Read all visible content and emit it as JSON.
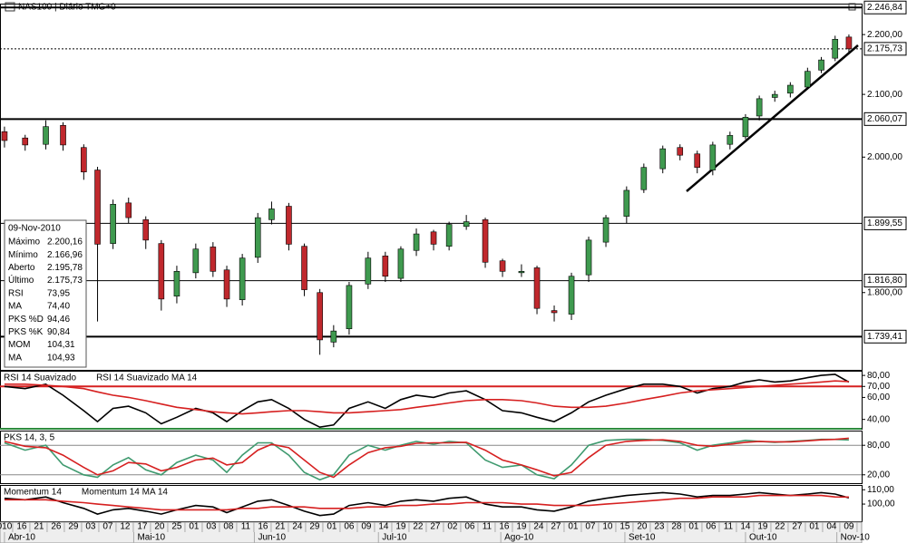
{
  "chart_data": [
    {
      "type": "candlestick",
      "title": "NAS100 | Diário TMG+0",
      "log_scale": true,
      "xlim": [
        -0.26,
        49.74
      ],
      "ylim": [
        1695,
        2252
      ],
      "up_color": "#3f9a4f",
      "down_color": "#c0282d",
      "x": [
        0,
        1.2,
        2.4,
        3.4,
        4.6,
        5.4,
        6.3,
        7.2,
        8.2,
        9.1,
        10,
        11.1,
        12.1,
        12.9,
        13.8,
        14.7,
        15.5,
        16.5,
        17.4,
        18.3,
        19.1,
        20,
        21.1,
        22.1,
        23,
        23.9,
        24.9,
        25.8,
        26.8,
        27.9,
        28.9,
        30,
        30.9,
        31.9,
        32.9,
        33.9,
        34.9,
        36.1,
        37.1,
        38.2,
        39.2,
        40.2,
        41.1,
        42.1,
        43,
        43.8,
        44.7,
        45.6,
        46.6,
        47.4,
        48.2,
        49
      ],
      "open": [
        2040,
        2030,
        2020,
        2050,
        2015,
        1980,
        1870,
        1930,
        1905,
        1870,
        1795,
        1828,
        1865,
        1832,
        1790,
        1850,
        1905,
        1925,
        1866,
        1800,
        1732,
        1750,
        1812,
        1852,
        1820,
        1860,
        1887,
        1866,
        1895,
        1905,
        1845,
        1828,
        1835,
        1775,
        1770,
        1825,
        1872,
        1910,
        1950,
        1982,
        2015,
        2005,
        1980,
        2020,
        2032,
        2065,
        2095,
        2102,
        2112,
        2140,
        2160,
        2195.78
      ],
      "high": [
        2048,
        2035,
        2058,
        2055,
        2020,
        1985,
        1935,
        1938,
        1910,
        1875,
        1838,
        1870,
        1872,
        1838,
        1855,
        1915,
        1932,
        1930,
        1870,
        1805,
        1755,
        1815,
        1858,
        1858,
        1866,
        1892,
        1890,
        1902,
        1912,
        1908,
        1848,
        1840,
        1838,
        1782,
        1828,
        1880,
        1912,
        1955,
        1990,
        2018,
        2020,
        2010,
        2024,
        2040,
        2068,
        2098,
        2106,
        2120,
        2144,
        2162,
        2198,
        2200.16
      ],
      "low": [
        2015,
        2010,
        2012,
        2010,
        1965,
        1760,
        1862,
        1900,
        1862,
        1775,
        1785,
        1820,
        1822,
        1780,
        1782,
        1842,
        1898,
        1860,
        1795,
        1715,
        1725,
        1742,
        1805,
        1815,
        1815,
        1852,
        1860,
        1860,
        1890,
        1835,
        1822,
        1822,
        1770,
        1760,
        1762,
        1815,
        1865,
        1900,
        1945,
        1975,
        1995,
        1975,
        1972,
        2012,
        2028,
        2058,
        2088,
        2095,
        2108,
        2135,
        2155,
        2166.96
      ],
      "close": [
        2026,
        2019,
        2048,
        2019,
        1977,
        1869,
        1928,
        1908,
        1875,
        1791,
        1830,
        1862,
        1830,
        1791,
        1849,
        1908,
        1921,
        1869,
        1804,
        1735,
        1747,
        1810,
        1849,
        1823,
        1862,
        1884,
        1869,
        1898,
        1902,
        1843,
        1830,
        1830,
        1778,
        1772,
        1823,
        1875,
        1908,
        1949,
        1984,
        2013,
        2003,
        1984,
        2019,
        2034,
        2063,
        2093,
        2100,
        2115,
        2138,
        2157,
        2192,
        2175.73
      ],
      "yticks": [
        {
          "value": 2200,
          "label": "2.200,00"
        },
        {
          "value": 2100,
          "label": "2.100,00"
        },
        {
          "value": 2000,
          "label": "2.000,00"
        },
        {
          "value": 1800,
          "label": "1.800,00"
        }
      ],
      "levels": [
        {
          "value": 2246.84,
          "label": "2.246,84",
          "style": "thick"
        },
        {
          "value": 2175.73,
          "label": "2.175,73",
          "style": "dotted"
        },
        {
          "value": 2060.07,
          "label": "2.060,07",
          "style": "thick"
        },
        {
          "value": 1899.55,
          "label": "1.899,55",
          "style": "thin"
        },
        {
          "value": 1816.8,
          "label": "1.816,80",
          "style": "thin"
        },
        {
          "value": 1739.41,
          "label": "1.739,41",
          "style": "thick"
        }
      ],
      "info": {
        "date": "09-Nov-2010",
        "rows": [
          {
            "label": "Máximo",
            "value": "2.200,16",
            "color": "#000000"
          },
          {
            "label": "Mínimo",
            "value": "2.166,96",
            "color": "#000000"
          },
          {
            "label": "Aberto",
            "value": "2.195,78",
            "color": "#000000"
          },
          {
            "label": "Último",
            "value": "2.175,73",
            "color": "#000000"
          },
          {
            "label": "RSI",
            "value": "73,95",
            "color": "#000000"
          },
          {
            "label": "MA",
            "value": "74,40",
            "color": "#c0282d"
          },
          {
            "label": "PKS %D",
            "value": "94,46",
            "color": "#c0282d"
          },
          {
            "label": "PKS %K",
            "value": "90,84",
            "color": "#3f9a4f"
          },
          {
            "label": "MOM",
            "value": "104,31",
            "color": "#000000"
          },
          {
            "label": "MA",
            "value": "104,93",
            "color": "#c0282d"
          }
        ]
      }
    },
    {
      "type": "line",
      "ylim": [
        31.5,
        83.4
      ],
      "yticks": [
        {
          "value": 80,
          "label": "80,00"
        },
        {
          "value": 70,
          "label": "70,00"
        },
        {
          "value": 60,
          "label": "60,00"
        },
        {
          "value": 40,
          "label": "40,00"
        }
      ],
      "hlines": [
        {
          "value": 70,
          "color": "#d62020"
        }
      ],
      "series": [
        {
          "name": "RSI 14 Suavizado",
          "color": "#000000",
          "values": [
            70,
            68,
            72,
            62,
            48,
            38,
            50,
            52,
            46,
            36,
            42,
            50,
            46,
            38,
            48,
            56,
            58,
            50,
            40,
            33,
            35,
            50,
            56,
            50,
            58,
            62,
            60,
            64,
            66,
            58,
            48,
            46,
            42,
            38,
            46,
            56,
            62,
            68,
            72,
            72,
            70,
            64,
            68,
            70,
            74,
            76,
            74,
            75,
            78,
            80,
            81,
            73.95
          ]
        },
        {
          "name": "RSI 14 Suavizado MA 14",
          "color": "#d62020",
          "values": [
            72,
            72,
            71,
            70,
            68,
            65,
            62,
            60,
            57,
            54,
            51,
            49,
            47,
            46,
            45,
            46,
            47,
            48,
            48,
            47,
            46,
            46,
            47,
            48,
            49,
            51,
            53,
            55,
            57,
            58,
            58,
            57,
            55,
            52,
            51,
            51,
            52,
            55,
            58,
            61,
            64,
            66,
            67,
            68,
            69,
            70,
            71,
            72,
            73,
            74,
            75,
            74.4
          ]
        }
      ]
    },
    {
      "type": "line",
      "title": "PKS 14, 3, 5",
      "ylim": [
        3,
        108
      ],
      "yticks": [
        {
          "value": 80,
          "label": "80,00"
        },
        {
          "value": 20,
          "label": "20,00"
        }
      ],
      "hlines": [
        {
          "value": 80,
          "color": "#888888"
        },
        {
          "value": 20,
          "color": "#888888"
        }
      ],
      "series": [
        {
          "color": "#3f9a6f",
          "values": [
            85,
            70,
            80,
            40,
            20,
            15,
            40,
            55,
            30,
            20,
            45,
            60,
            50,
            25,
            60,
            85,
            85,
            60,
            25,
            10,
            20,
            60,
            80,
            70,
            80,
            88,
            82,
            88,
            85,
            50,
            35,
            40,
            20,
            12,
            40,
            80,
            90,
            92,
            92,
            90,
            85,
            70,
            80,
            85,
            90,
            88,
            86,
            88,
            90,
            92,
            92,
            90.84
          ]
        },
        {
          "color": "#d62020",
          "values": [
            88,
            78,
            75,
            60,
            35,
            20,
            28,
            45,
            42,
            28,
            35,
            50,
            54,
            40,
            45,
            70,
            82,
            75,
            50,
            25,
            15,
            40,
            65,
            75,
            78,
            84,
            85,
            85,
            86,
            70,
            50,
            40,
            30,
            18,
            25,
            55,
            80,
            88,
            90,
            91,
            88,
            80,
            78,
            82,
            86,
            88,
            87,
            87,
            89,
            91,
            92,
            94.46
          ]
        }
      ]
    },
    {
      "type": "line",
      "ylim": [
        88,
        112.7
      ],
      "yticks": [
        {
          "value": 110,
          "label": "110,00"
        },
        {
          "value": 100,
          "label": "100,00"
        }
      ],
      "series": [
        {
          "name": "Momentum 14",
          "color": "#000000",
          "values": [
            104,
            103,
            105,
            101,
            97,
            93,
            96,
            97,
            95,
            93,
            96,
            99,
            98,
            94,
            98,
            102,
            103,
            99,
            95,
            92,
            93,
            99,
            101,
            99,
            102,
            103,
            102,
            104,
            105,
            100,
            98,
            98,
            96,
            95,
            98,
            102,
            104,
            106,
            107,
            108,
            107,
            105,
            106,
            106,
            107,
            108,
            107,
            106,
            107,
            108,
            107,
            104.31
          ]
        },
        {
          "name": "Momentum 14 MA 14",
          "color": "#d62020",
          "values": [
            103,
            103,
            103,
            102,
            101,
            100,
            99,
            98,
            97,
            96,
            96,
            96,
            96,
            96,
            97,
            97,
            98,
            98,
            98,
            97,
            97,
            97,
            98,
            98,
            99,
            99,
            100,
            100,
            101,
            101,
            101,
            100,
            100,
            99,
            99,
            99,
            100,
            101,
            102,
            103,
            104,
            104,
            105,
            105,
            105,
            106,
            106,
            106,
            106,
            106,
            105,
            104.93
          ]
        }
      ],
      "xticks": [
        {
          "value": 0,
          "label": "010"
        },
        {
          "value": 1,
          "label": "16"
        },
        {
          "value": 2,
          "label": "21"
        },
        {
          "value": 3,
          "label": "26"
        },
        {
          "value": 4,
          "label": "29"
        },
        {
          "value": 5,
          "label": "03"
        },
        {
          "value": 6,
          "label": "07"
        },
        {
          "value": 7,
          "label": "12"
        },
        {
          "value": 8,
          "label": "17"
        },
        {
          "value": 9,
          "label": "20"
        },
        {
          "value": 10,
          "label": "25"
        },
        {
          "value": 11,
          "label": "01"
        },
        {
          "value": 12,
          "label": "03"
        },
        {
          "value": 13,
          "label": "08"
        },
        {
          "value": 14,
          "label": "11"
        },
        {
          "value": 15,
          "label": "16"
        },
        {
          "value": 16,
          "label": "21"
        },
        {
          "value": 17,
          "label": "24"
        },
        {
          "value": 18,
          "label": "29"
        },
        {
          "value": 19,
          "label": "01"
        },
        {
          "value": 20,
          "label": "06"
        },
        {
          "value": 21,
          "label": "09"
        },
        {
          "value": 22,
          "label": "14"
        },
        {
          "value": 23,
          "label": "19"
        },
        {
          "value": 24,
          "label": "22"
        },
        {
          "value": 25,
          "label": "27"
        },
        {
          "value": 26,
          "label": "02"
        },
        {
          "value": 27,
          "label": "06"
        },
        {
          "value": 28,
          "label": "11"
        },
        {
          "value": 29,
          "label": "16"
        },
        {
          "value": 30,
          "label": "19"
        },
        {
          "value": 31,
          "label": "24"
        },
        {
          "value": 32,
          "label": "27"
        },
        {
          "value": 33,
          "label": "01"
        },
        {
          "value": 34,
          "label": "07"
        },
        {
          "value": 35,
          "label": "10"
        },
        {
          "value": 36,
          "label": "15"
        },
        {
          "value": 37,
          "label": "20"
        },
        {
          "value": 38,
          "label": "23"
        },
        {
          "value": 39,
          "label": "28"
        },
        {
          "value": 40,
          "label": "01"
        },
        {
          "value": 41,
          "label": "06"
        },
        {
          "value": 42,
          "label": "11"
        },
        {
          "value": 43,
          "label": "14"
        },
        {
          "value": 44,
          "label": "19"
        },
        {
          "value": 45,
          "label": "22"
        },
        {
          "value": 46,
          "label": "27"
        },
        {
          "value": 47,
          "label": "01"
        },
        {
          "value": 48,
          "label": "04"
        },
        {
          "value": 49,
          "label": "09"
        }
      ],
      "month_labels": [
        {
          "value": 0,
          "label": "Abr-10"
        },
        {
          "value": 7.5,
          "label": "Mai-10"
        },
        {
          "value": 14.5,
          "label": "Jun-10"
        },
        {
          "value": 21.7,
          "label": "Jul-10"
        },
        {
          "value": 28.8,
          "label": "Ago-10"
        },
        {
          "value": 36,
          "label": "Set-10"
        },
        {
          "value": 43,
          "label": "Out-10"
        },
        {
          "value": 48.3,
          "label": "Nov-10"
        }
      ]
    }
  ]
}
